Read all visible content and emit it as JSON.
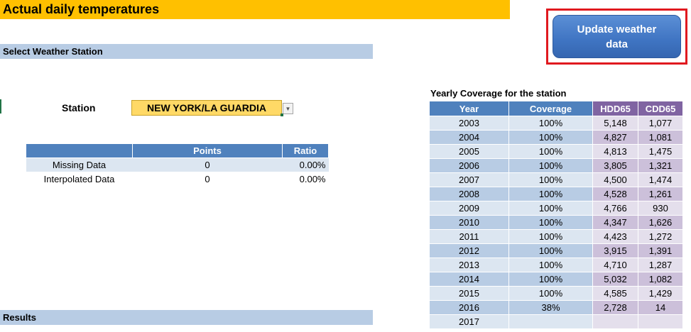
{
  "header": {
    "title": "Actual daily temperatures"
  },
  "update_button": {
    "label": "Update weather\ndata"
  },
  "sections": {
    "select_station": "Select Weather Station",
    "results": "Results"
  },
  "station": {
    "label": "Station",
    "value": "NEW YORK/LA GUARDIA"
  },
  "missing_table": {
    "headers": [
      "",
      "Points",
      "Ratio"
    ],
    "rows": [
      [
        "Missing Data",
        "0",
        "0.00%"
      ],
      [
        "Interpolated Data",
        "0",
        "0.00%"
      ]
    ]
  },
  "coverage": {
    "title": "Yearly Coverage for the station",
    "headers": [
      "Year",
      "Coverage",
      "HDD65",
      "CDD65"
    ],
    "rows": [
      [
        "2003",
        "100%",
        "5,148",
        "1,077"
      ],
      [
        "2004",
        "100%",
        "4,827",
        "1,081"
      ],
      [
        "2005",
        "100%",
        "4,813",
        "1,475"
      ],
      [
        "2006",
        "100%",
        "3,805",
        "1,321"
      ],
      [
        "2007",
        "100%",
        "4,500",
        "1,474"
      ],
      [
        "2008",
        "100%",
        "4,528",
        "1,261"
      ],
      [
        "2009",
        "100%",
        "4,766",
        "930"
      ],
      [
        "2010",
        "100%",
        "4,347",
        "1,626"
      ],
      [
        "2011",
        "100%",
        "4,423",
        "1,272"
      ],
      [
        "2012",
        "100%",
        "3,915",
        "1,391"
      ],
      [
        "2013",
        "100%",
        "4,710",
        "1,287"
      ],
      [
        "2014",
        "100%",
        "5,032",
        "1,082"
      ],
      [
        "2015",
        "100%",
        "4,585",
        "1,429"
      ],
      [
        "2016",
        "38%",
        "2,728",
        "14"
      ],
      [
        "2017",
        "",
        "",
        ""
      ]
    ]
  },
  "colors": {
    "title_bg": "#ffc000",
    "section_bg": "#b8cce4",
    "table_header_blue": "#4f81bd",
    "table_header_purple": "#8064a2",
    "station_bg": "#ffd966",
    "button_highlight": "#e0191f"
  },
  "icons": {
    "dropdown": "chevron-down-icon"
  }
}
